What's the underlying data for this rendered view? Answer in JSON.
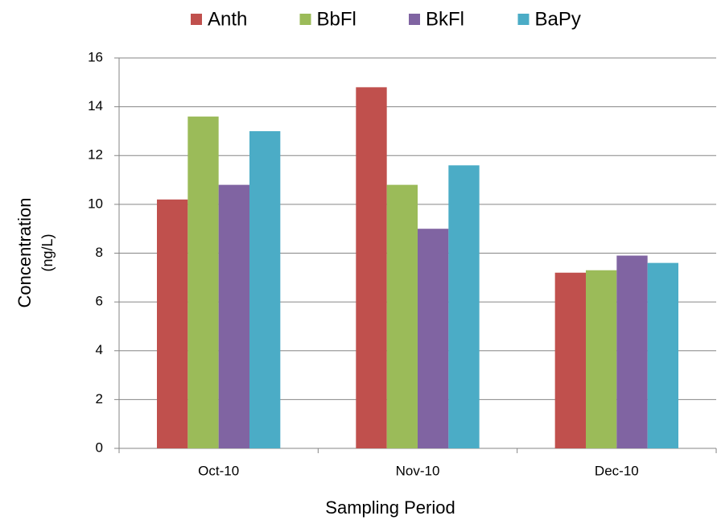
{
  "chart_data": {
    "type": "bar",
    "x_label": "Sampling Period",
    "y_label": [
      "Concentration",
      "(ng/L)"
    ],
    "categories": [
      "Oct-10",
      "Nov-10",
      "Dec-10"
    ],
    "series": [
      {
        "name": "Anth",
        "color": "#c0504d",
        "values": [
          10.2,
          14.8,
          7.2
        ]
      },
      {
        "name": "BbFl",
        "color": "#9bbb59",
        "values": [
          13.6,
          10.8,
          7.3
        ]
      },
      {
        "name": "BkFl",
        "color": "#8064a2",
        "values": [
          10.8,
          9.0,
          7.9
        ]
      },
      {
        "name": "BaPy",
        "color": "#4bacc6",
        "values": [
          13.0,
          11.6,
          7.6
        ]
      }
    ],
    "ylim": [
      0,
      16
    ],
    "yticks": [
      0,
      2,
      4,
      6,
      8,
      10,
      12,
      14,
      16
    ],
    "grid": true,
    "legend": "top"
  }
}
